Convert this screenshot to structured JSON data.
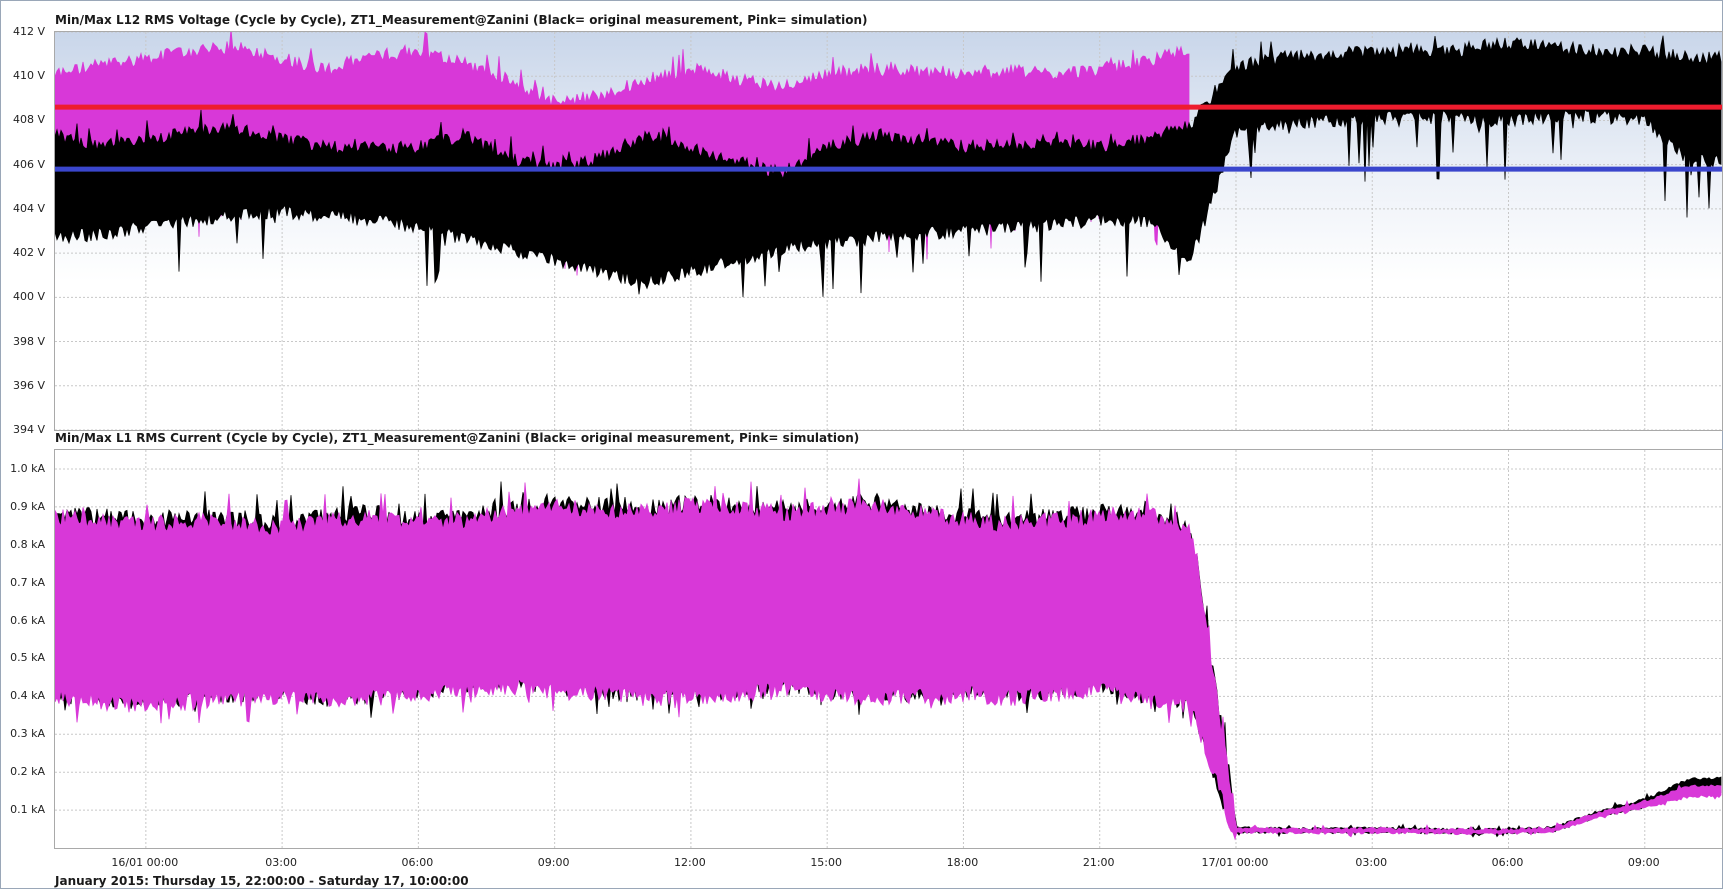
{
  "chart_data": [
    {
      "type": "area",
      "title": "Min/Max L12 RMS Voltage (Cycle by Cycle), ZT1_Measurement@Zanini (Black= original measurement, Pink= simulation)",
      "xlabel": "",
      "ylabel": "",
      "unit": "V",
      "ylim": [
        394,
        412
      ],
      "yticks": [
        "394 V",
        "396 V",
        "398 V",
        "400 V",
        "402 V",
        "404 V",
        "406 V",
        "408 V",
        "410 V",
        "412 V"
      ],
      "ytick_values": [
        394,
        396,
        398,
        400,
        402,
        404,
        406,
        408,
        410,
        412
      ],
      "grid": true,
      "x": [
        "15/01 22:00",
        "15/01 23:00",
        "16/01 00:00",
        "16/01 01:00",
        "16/01 02:00",
        "16/01 03:00",
        "16/01 04:00",
        "16/01 05:00",
        "16/01 06:00",
        "16/01 07:00",
        "16/01 08:00",
        "16/01 09:00",
        "16/01 10:00",
        "16/01 11:00",
        "16/01 12:00",
        "16/01 13:00",
        "16/01 14:00",
        "16/01 15:00",
        "16/01 16:00",
        "16/01 17:00",
        "16/01 18:00",
        "16/01 19:00",
        "16/01 20:00",
        "16/01 21:00",
        "16/01 22:00",
        "16/01 23:00",
        "17/01 00:00",
        "17/01 01:00",
        "17/01 02:00",
        "17/01 03:00",
        "17/01 04:00",
        "17/01 05:00",
        "17/01 06:00",
        "17/01 07:00",
        "17/01 08:00",
        "17/01 09:00",
        "17/01 10:00"
      ],
      "series": [
        {
          "name": "Pink= simulation",
          "color": "#d838d8",
          "max": [
            409.8,
            410.2,
            410.5,
            410.8,
            411.0,
            410.5,
            410.0,
            410.6,
            410.8,
            410.3,
            409.5,
            408.5,
            408.8,
            409.5,
            410.0,
            409.6,
            409.2,
            409.8,
            410.0,
            409.9,
            409.7,
            409.9,
            409.8,
            410.0,
            410.3,
            411.0,
            null,
            null,
            null,
            null,
            null,
            null,
            null,
            null,
            null,
            null,
            null
          ],
          "min": [
            405.6,
            405.7,
            405.8,
            405.9,
            405.7,
            405.9,
            405.8,
            405.7,
            405.5,
            405.0,
            404.8,
            404.0,
            403.8,
            403.5,
            403.9,
            404.2,
            404.4,
            404.5,
            404.8,
            404.8,
            404.9,
            405.0,
            405.0,
            405.0,
            405.0,
            404.5,
            null,
            null,
            null,
            null,
            null,
            null,
            null,
            null,
            null,
            null,
            null
          ]
        },
        {
          "name": "Black= original measurement",
          "color": "#000000",
          "max": [
            407.0,
            406.5,
            406.8,
            407.2,
            407.3,
            406.8,
            406.5,
            406.4,
            406.5,
            407.0,
            406.0,
            405.5,
            406.0,
            407.0,
            406.5,
            405.8,
            405.3,
            406.5,
            407.0,
            406.8,
            406.5,
            406.5,
            406.8,
            406.5,
            406.8,
            407.5,
            410.2,
            410.5,
            410.7,
            410.8,
            410.9,
            410.8,
            411.2,
            411.0,
            410.8,
            410.8,
            410.5
          ],
          "min": [
            403.0,
            403.2,
            403.5,
            403.8,
            404.0,
            404.2,
            404.0,
            403.8,
            403.5,
            403.0,
            402.5,
            402.0,
            401.5,
            401.0,
            401.5,
            402.0,
            402.5,
            402.8,
            403.0,
            403.2,
            403.3,
            403.5,
            403.6,
            403.8,
            403.8,
            402.0,
            407.8,
            408.2,
            408.3,
            408.4,
            408.5,
            408.4,
            408.3,
            408.5,
            408.5,
            408.3,
            406.5
          ]
        },
        {
          "name": "",
          "color": "#ee1c2e",
          "level": 408.6
        },
        {
          "name": "",
          "color": "#3a46cc",
          "level": 405.8
        }
      ]
    },
    {
      "type": "area",
      "title": "Min/Max L1 RMS Current (Cycle by Cycle), ZT1_Measurement@Zanini (Black= original measurement, Pink= simulation)",
      "xlabel": "January 2015: Thursday 15, 22:00:00 - Saturday 17, 10:00:00",
      "ylabel": "",
      "unit": "kA",
      "ylim": [
        0.0,
        1.05
      ],
      "yticks": [
        "0.1 kA",
        "0.2 kA",
        "0.3 kA",
        "0.4 kA",
        "0.5 kA",
        "0.6 kA",
        "0.7 kA",
        "0.8 kA",
        "0.9 kA",
        "1.0 kA"
      ],
      "ytick_values": [
        0.1,
        0.2,
        0.3,
        0.4,
        0.5,
        0.6,
        0.7,
        0.8,
        0.9,
        1.0
      ],
      "grid": true,
      "x": [
        "15/01 22:00",
        "15/01 23:00",
        "16/01 00:00",
        "16/01 01:00",
        "16/01 02:00",
        "16/01 03:00",
        "16/01 04:00",
        "16/01 05:00",
        "16/01 06:00",
        "16/01 07:00",
        "16/01 08:00",
        "16/01 09:00",
        "16/01 10:00",
        "16/01 11:00",
        "16/01 12:00",
        "16/01 13:00",
        "16/01 14:00",
        "16/01 15:00",
        "16/01 16:00",
        "16/01 17:00",
        "16/01 18:00",
        "16/01 19:00",
        "16/01 20:00",
        "16/01 21:00",
        "16/01 22:00",
        "16/01 23:00",
        "17/01 00:00",
        "17/01 01:00",
        "17/01 02:00",
        "17/01 03:00",
        "17/01 04:00",
        "17/01 05:00",
        "17/01 06:00",
        "17/01 07:00",
        "17/01 08:00",
        "17/01 09:00",
        "17/01 10:00"
      ],
      "series": [
        {
          "name": "Pink= simulation",
          "color": "#d838d8",
          "max": [
            0.85,
            0.84,
            0.83,
            0.84,
            0.83,
            0.82,
            0.84,
            0.85,
            0.83,
            0.84,
            0.86,
            0.88,
            0.87,
            0.86,
            0.88,
            0.87,
            0.86,
            0.87,
            0.88,
            0.86,
            0.84,
            0.83,
            0.84,
            0.85,
            0.86,
            0.82,
            0.05,
            0.047,
            0.046,
            0.048,
            0.046,
            0.045,
            0.045,
            0.05,
            0.09,
            0.12,
            0.16
          ],
          "min": [
            0.42,
            0.41,
            0.4,
            0.41,
            0.42,
            0.42,
            0.41,
            0.42,
            0.43,
            0.44,
            0.45,
            0.44,
            0.43,
            0.42,
            0.42,
            0.43,
            0.44,
            0.43,
            0.42,
            0.42,
            0.43,
            0.42,
            0.43,
            0.44,
            0.42,
            0.4,
            0.045,
            0.044,
            0.043,
            0.044,
            0.043,
            0.042,
            0.042,
            0.046,
            0.085,
            0.11,
            0.14
          ]
        },
        {
          "name": "Black= original measurement",
          "color": "#000000",
          "max": [
            0.86,
            0.85,
            0.84,
            0.85,
            0.84,
            0.83,
            0.85,
            0.86,
            0.84,
            0.85,
            0.87,
            0.89,
            0.88,
            0.87,
            0.89,
            0.88,
            0.87,
            0.88,
            0.89,
            0.87,
            0.85,
            0.84,
            0.85,
            0.86,
            0.87,
            0.83,
            0.05,
            0.048,
            0.047,
            0.049,
            0.047,
            0.046,
            0.046,
            0.051,
            0.095,
            0.125,
            0.18
          ],
          "min": [
            0.43,
            0.42,
            0.41,
            0.42,
            0.43,
            0.43,
            0.42,
            0.43,
            0.44,
            0.45,
            0.46,
            0.45,
            0.44,
            0.43,
            0.43,
            0.44,
            0.45,
            0.44,
            0.43,
            0.43,
            0.44,
            0.43,
            0.44,
            0.45,
            0.43,
            0.41,
            0.046,
            0.045,
            0.044,
            0.045,
            0.044,
            0.043,
            0.043,
            0.047,
            0.088,
            0.115,
            0.15
          ]
        }
      ]
    }
  ],
  "xaxis": {
    "ticks": [
      "16/01 00:00",
      "03:00",
      "06:00",
      "09:00",
      "12:00",
      "15:00",
      "18:00",
      "21:00",
      "17/01 00:00",
      "03:00",
      "06:00",
      "09:00"
    ],
    "tick_hours": [
      2,
      5,
      8,
      11,
      14,
      17,
      20,
      23,
      26,
      29,
      32,
      35
    ],
    "range_hours": [
      0,
      36.7
    ]
  }
}
